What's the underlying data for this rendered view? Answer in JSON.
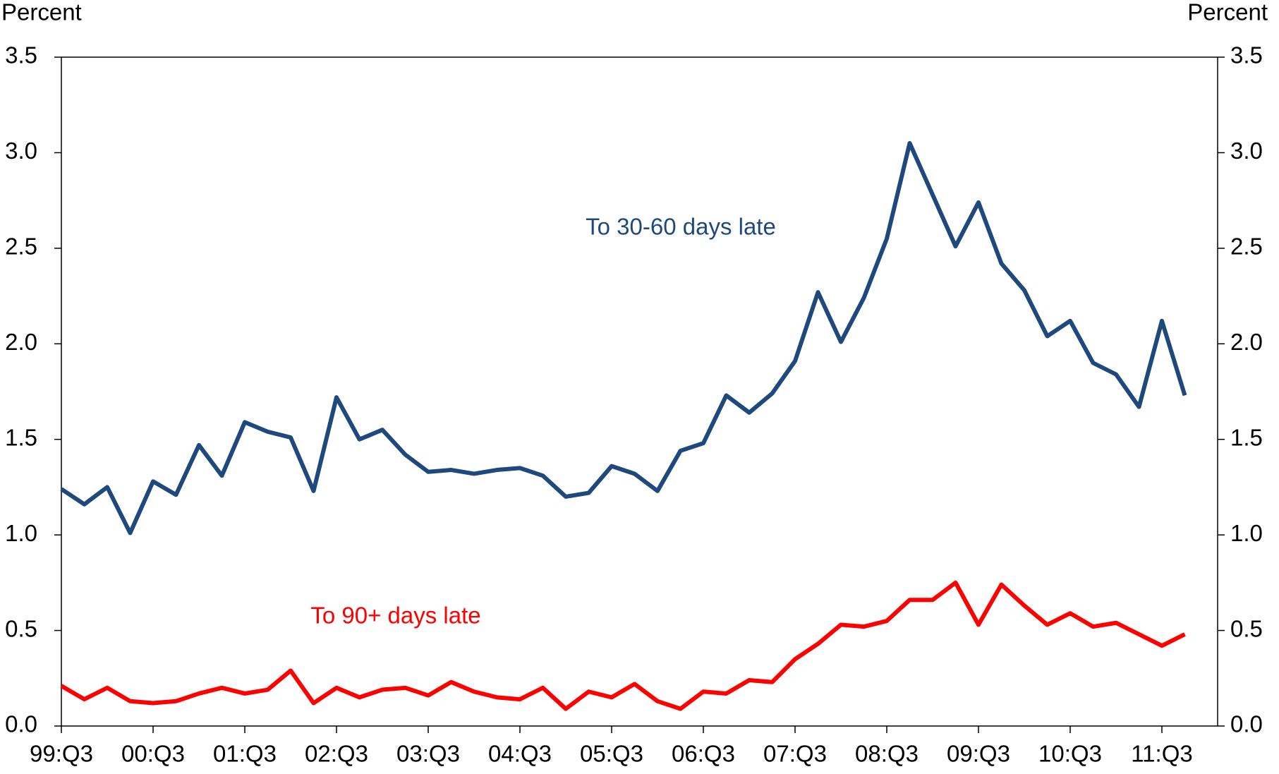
{
  "chart_data": {
    "type": "line",
    "y_label": "Percent",
    "y2_label": "Percent",
    "categories": [
      "99:Q3",
      null,
      null,
      null,
      "00:Q3",
      null,
      null,
      null,
      "01:Q3",
      null,
      null,
      null,
      "02:Q3",
      null,
      null,
      null,
      "03:Q3",
      null,
      null,
      null,
      "04:Q3",
      null,
      null,
      null,
      "05:Q3",
      null,
      null,
      null,
      "06:Q3",
      null,
      null,
      null,
      "07:Q3",
      null,
      null,
      null,
      "08:Q3",
      null,
      null,
      null,
      "09:Q3",
      null,
      null,
      null,
      "10:Q3",
      null,
      null,
      null,
      "11:Q3",
      null
    ],
    "series": [
      {
        "name": "To 30-60 days late",
        "color": "#1f497d",
        "values": [
          1.24,
          1.16,
          1.25,
          1.01,
          1.28,
          1.21,
          1.47,
          1.31,
          1.59,
          1.54,
          1.51,
          1.23,
          1.72,
          1.5,
          1.55,
          1.42,
          1.33,
          1.34,
          1.32,
          1.34,
          1.35,
          1.31,
          1.2,
          1.22,
          1.36,
          1.32,
          1.23,
          1.44,
          1.48,
          1.73,
          1.64,
          1.74,
          1.91,
          2.27,
          2.01,
          2.24,
          2.55,
          3.05,
          2.78,
          2.51,
          2.74,
          2.42,
          2.28,
          2.04,
          2.12,
          1.9,
          1.84,
          1.67,
          2.12,
          1.73
        ]
      },
      {
        "name": "To 90+ days late",
        "color": "#ff0000",
        "values": [
          0.21,
          0.14,
          0.2,
          0.13,
          0.12,
          0.13,
          0.17,
          0.2,
          0.17,
          0.19,
          0.29,
          0.12,
          0.2,
          0.15,
          0.19,
          0.2,
          0.16,
          0.23,
          0.18,
          0.15,
          0.14,
          0.2,
          0.09,
          0.18,
          0.15,
          0.22,
          0.13,
          0.09,
          0.18,
          0.17,
          0.24,
          0.23,
          0.35,
          0.43,
          0.53,
          0.52,
          0.55,
          0.66,
          0.66,
          0.75,
          0.53,
          0.74,
          0.63,
          0.53,
          0.59,
          0.52,
          0.54,
          0.48,
          0.42,
          0.48
        ]
      }
    ],
    "ylim": [
      0,
      3.5
    ],
    "yticks": [
      {
        "value": 0,
        "label": "0.0"
      },
      0.5,
      {
        "value": 1,
        "label": "1.0"
      },
      1.5,
      {
        "value": 2,
        "label": "2.0"
      },
      2.5,
      {
        "value": 3,
        "label": "3.0"
      },
      3.5
    ],
    "y2lim": [
      0,
      3.5
    ],
    "y2ticks": [
      {
        "value": 0,
        "label": "0.0"
      },
      0.5,
      {
        "value": 1,
        "label": "1.0"
      },
      1.5,
      {
        "value": 2,
        "label": "2.0"
      },
      2.5,
      {
        "value": 3,
        "label": "3.0"
      },
      3.5
    ],
    "grid": false
  }
}
